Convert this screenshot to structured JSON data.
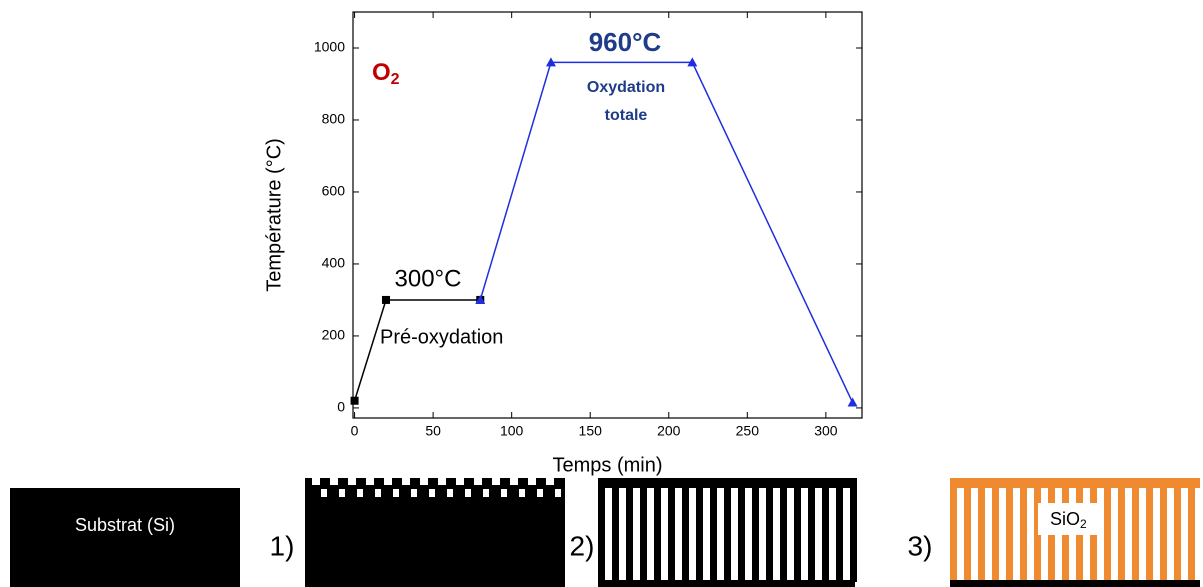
{
  "chart_data": {
    "type": "line",
    "x_label": "Temps (min)",
    "y_label": "Température (°C)",
    "xlim": [
      -1,
      323
    ],
    "ylim": [
      -28,
      1100
    ],
    "xticks": [
      0,
      50,
      100,
      150,
      200,
      250,
      300
    ],
    "yticks": [
      0,
      200,
      400,
      600,
      800,
      1000
    ],
    "series": [
      {
        "color": "#000000",
        "marker": "square",
        "x": [
          0,
          20,
          80
        ],
        "values": [
          20,
          300,
          300
        ]
      },
      {
        "color": "#1f2fe0",
        "marker": "triangle",
        "x": [
          80,
          125,
          215,
          317
        ],
        "values": [
          300,
          960,
          960,
          15
        ]
      }
    ],
    "annotations": {
      "gas": "O",
      "gas_sub": "2",
      "high_temp": "960°C",
      "high_step": [
        "Oxydation",
        "totale"
      ],
      "low_temp": "300°C",
      "low_step": "Pré-oxydation"
    }
  },
  "diagram": {
    "substrate": "Substrat (Si)",
    "step1": "1)",
    "step2": "2)",
    "step3": "3)",
    "oxide": "SiO",
    "oxide_sub": "2"
  }
}
